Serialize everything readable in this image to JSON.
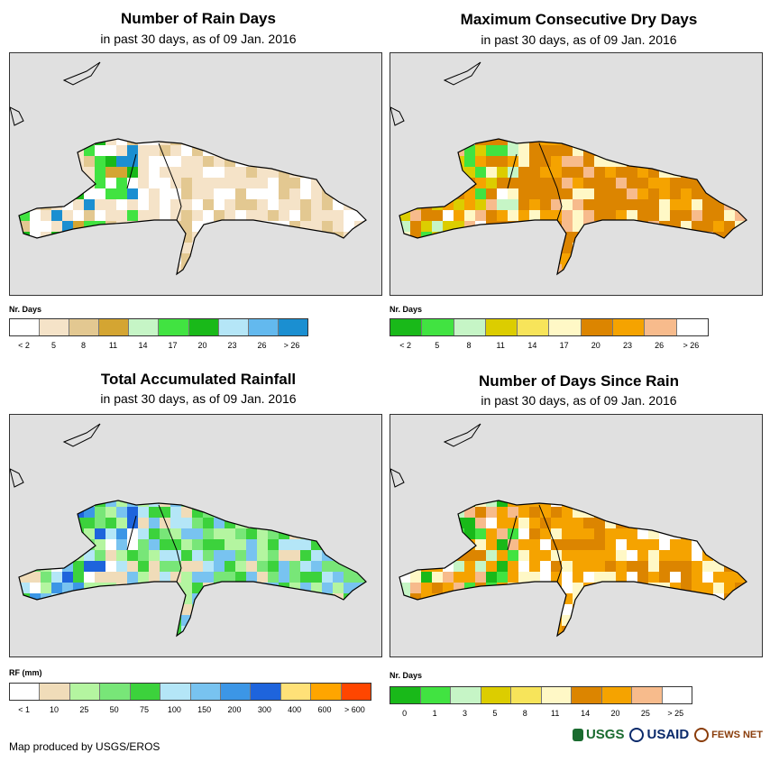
{
  "subtitle": "in past 30 days, as of 09 Jan. 2016",
  "footer": "Map produced by USGS/EROS",
  "logos": {
    "usgs": "USGS",
    "usaid": "USAID",
    "fews": "FEWS NET"
  },
  "panels": [
    {
      "title": "Number of Rain Days",
      "legend_title": "Nr. Days",
      "legend_colors": [
        "#ffffff",
        "#f5e3c8",
        "#e3c891",
        "#d4a532",
        "#c6f5c6",
        "#41e341",
        "#19b919",
        "#b5e6f7",
        "#63b9ee",
        "#1b8fd1"
      ],
      "legend_labels": [
        "< 2",
        "5",
        "8",
        "11",
        "14",
        "17",
        "20",
        "23",
        "26",
        "> 26"
      ]
    },
    {
      "title": "Maximum Consecutive Dry Days",
      "legend_title": "Nr. Days",
      "legend_colors": [
        "#19b919",
        "#41e341",
        "#c6f5c6",
        "#dccd00",
        "#f7e45a",
        "#fff8c6",
        "#dc8500",
        "#f5a300",
        "#f7bb8c",
        "#ffffff"
      ],
      "legend_labels": [
        "< 2",
        "5",
        "8",
        "11",
        "14",
        "17",
        "20",
        "23",
        "26",
        "> 26"
      ]
    },
    {
      "title": "Total Accumulated Rainfall",
      "legend_title": "RF (mm)",
      "legend_colors": [
        "#ffffff",
        "#f0dcb9",
        "#b4f5a0",
        "#78e678",
        "#3cd23c",
        "#b4e6f7",
        "#78c3f0",
        "#3c96e6",
        "#1e64dc",
        "#ffe178",
        "#ffa500",
        "#ff4600"
      ],
      "legend_labels": [
        "< 1",
        "10",
        "25",
        "50",
        "75",
        "100",
        "150",
        "200",
        "300",
        "400",
        "600",
        "> 600"
      ]
    },
    {
      "title": "Number of Days Since Rain",
      "legend_title": "Nr. Days",
      "legend_colors": [
        "#19b919",
        "#41e341",
        "#c6f5c6",
        "#dccd00",
        "#f7e45a",
        "#fff8c6",
        "#dc8500",
        "#f5a300",
        "#f7bb8c",
        "#ffffff"
      ],
      "legend_labels": [
        "0",
        "1",
        "3",
        "5",
        "8",
        "11",
        "14",
        "20",
        "25",
        "> 25"
      ]
    }
  ]
}
